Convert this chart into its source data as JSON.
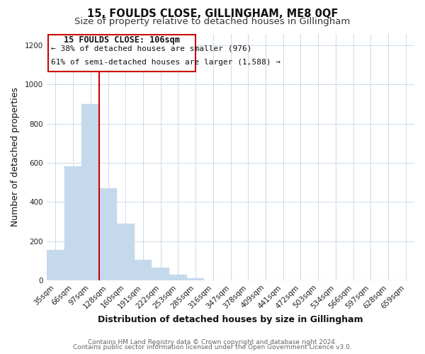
{
  "title": "15, FOULDS CLOSE, GILLINGHAM, ME8 0QF",
  "subtitle": "Size of property relative to detached houses in Gillingham",
  "xlabel": "Distribution of detached houses by size in Gillingham",
  "ylabel": "Number of detached properties",
  "categories": [
    "35sqm",
    "66sqm",
    "97sqm",
    "128sqm",
    "160sqm",
    "191sqm",
    "222sqm",
    "253sqm",
    "285sqm",
    "316sqm",
    "347sqm",
    "378sqm",
    "409sqm",
    "441sqm",
    "472sqm",
    "503sqm",
    "534sqm",
    "566sqm",
    "597sqm",
    "628sqm",
    "659sqm"
  ],
  "bar_values": [
    155,
    580,
    900,
    470,
    290,
    105,
    65,
    28,
    12,
    0,
    0,
    0,
    0,
    0,
    0,
    0,
    0,
    0,
    0,
    0,
    0
  ],
  "bar_color": "#c5d9ed",
  "bar_edge_color": "#c5d9ed",
  "vline_color": "#cc0000",
  "annotation_title": "15 FOULDS CLOSE: 106sqm",
  "annotation_line1": "← 38% of detached houses are smaller (976)",
  "annotation_line2": "61% of semi-detached houses are larger (1,588) →",
  "ylim": [
    0,
    1260
  ],
  "yticks": [
    0,
    200,
    400,
    600,
    800,
    1000,
    1200
  ],
  "footer_line1": "Contains HM Land Registry data © Crown copyright and database right 2024.",
  "footer_line2": "Contains public sector information licensed under the Open Government Licence v3.0.",
  "background_color": "#ffffff",
  "grid_color": "#ccd9e8",
  "title_fontsize": 10.5,
  "subtitle_fontsize": 9.5,
  "axis_label_fontsize": 9,
  "tick_fontsize": 7.5,
  "footer_fontsize": 6.5,
  "annotation_fontsize_title": 8.5,
  "annotation_fontsize_body": 8.0
}
